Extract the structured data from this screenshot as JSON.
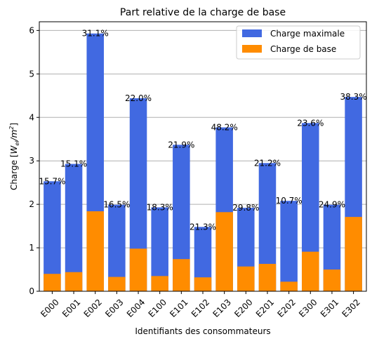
{
  "chart_data": {
    "type": "bar",
    "title": "Part relative de la charge de base",
    "xlabel": "Identifiants des consommateurs",
    "ylabel_prefix": "Charge [",
    "ylabel_unit_main": "W",
    "ylabel_unit_sub": "el",
    "ylabel_unit_div": "/m",
    "ylabel_unit_sup": "2",
    "ylabel_suffix": "]",
    "ylim": [
      0,
      6.2
    ],
    "yticks": [
      "0",
      "1",
      "2",
      "3",
      "4",
      "5",
      "6"
    ],
    "grid": "horizontal",
    "legend_position": "top-right",
    "categories": [
      "E000",
      "E001",
      "E002",
      "E003",
      "E004",
      "E100",
      "E101",
      "E102",
      "E103",
      "E200",
      "E201",
      "E202",
      "E300",
      "E301",
      "E302"
    ],
    "series": [
      {
        "name": "Charge maximale",
        "color": "#4169e1",
        "values": [
          2.53,
          2.93,
          5.93,
          1.99,
          4.44,
          1.93,
          3.37,
          1.48,
          3.77,
          1.92,
          2.95,
          2.08,
          3.87,
          1.99,
          4.47
        ]
      },
      {
        "name": "Charge de base",
        "color": "#ff8c00",
        "values": [
          0.4,
          0.44,
          1.84,
          0.33,
          0.98,
          0.35,
          0.74,
          0.32,
          1.82,
          0.57,
          0.63,
          0.22,
          0.91,
          0.5,
          1.71
        ]
      }
    ],
    "data_labels": [
      "15.7%",
      "15.1%",
      "31.1%",
      "16.5%",
      "22.0%",
      "18.3%",
      "21.9%",
      "21.3%",
      "48.2%",
      "29.8%",
      "21.2%",
      "10.7%",
      "23.6%",
      "24.9%",
      "38.3%"
    ]
  }
}
